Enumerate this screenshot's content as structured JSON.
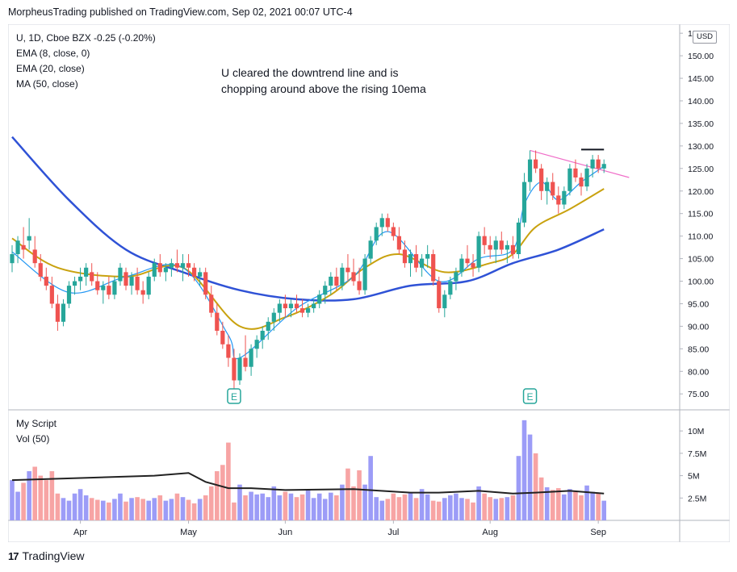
{
  "header": {
    "publish_line": "MorpheusTrading published on TradingView.com, Sep 02, 2021 00:07 UTC-4"
  },
  "legend": {
    "symbol_line": "U, 1D, Cboe BZX  -0.25 (-0.20%)",
    "ema8": "EMA (8, close, 0)",
    "ema20": "EMA (20, close)",
    "ma50": "MA (50, close)"
  },
  "annotation": "U cleared the downtrend line and is chopping around above the rising 10ema",
  "volume_legend": {
    "script": "My Script",
    "vol": "Vol (50)"
  },
  "price_axis": {
    "currency": "USD",
    "ticks": [
      "155.00",
      "150.00",
      "145.00",
      "140.00",
      "135.00",
      "130.00",
      "125.00",
      "120.00",
      "115.00",
      "110.00",
      "105.00",
      "100.00",
      "95.00",
      "90.00",
      "85.00",
      "80.00",
      "75.00"
    ]
  },
  "volume_axis": {
    "ticks": [
      "10M",
      "7.5M",
      "5M",
      "2.5M"
    ]
  },
  "time_axis": {
    "ticks": [
      "Apr",
      "May",
      "Jun",
      "Jul",
      "Aug",
      "Sep"
    ]
  },
  "earnings_markers": [
    "E",
    "E"
  ],
  "brand": "TradingView",
  "colors": {
    "up": "#26a69a",
    "down": "#ef5350",
    "ema8": "#2196f3",
    "ema20": "#c9a20f",
    "ma50": "#2f52d6",
    "vol_up": "#9c9cf7",
    "vol_down": "#f7a4a4",
    "vol_ma": "#222222",
    "trendline": "#f06cc8"
  },
  "chart_data": {
    "type": "candlestick",
    "symbol": "U",
    "interval": "1D",
    "ylim": [
      72,
      157
    ],
    "x_ticks": [
      "Apr",
      "May",
      "Jun",
      "Jul",
      "Aug",
      "Sep"
    ],
    "ohlc": [
      [
        104,
        108,
        102,
        106
      ],
      [
        106,
        110,
        104,
        109
      ],
      [
        108,
        112,
        105,
        107
      ],
      [
        109,
        114,
        107,
        110
      ],
      [
        107,
        110,
        103,
        104
      ],
      [
        104,
        106,
        100,
        101
      ],
      [
        101,
        103,
        98,
        99
      ],
      [
        99,
        101,
        94,
        95
      ],
      [
        95,
        97,
        89,
        91
      ],
      [
        91,
        96,
        90,
        95
      ],
      [
        95,
        100,
        94,
        99
      ],
      [
        99,
        101,
        97,
        100
      ],
      [
        100,
        103,
        98,
        101
      ],
      [
        101,
        104,
        99,
        103
      ],
      [
        102,
        104,
        99,
        100
      ],
      [
        100,
        102,
        97,
        98
      ],
      [
        98,
        100,
        95,
        99
      ],
      [
        99,
        101,
        96,
        97
      ],
      [
        97,
        101,
        96,
        100
      ],
      [
        100,
        104,
        99,
        103
      ],
      [
        102,
        103,
        98,
        99
      ],
      [
        99,
        102,
        97,
        101
      ],
      [
        101,
        103,
        97,
        98
      ],
      [
        98,
        100,
        95,
        97
      ],
      [
        97,
        102,
        96,
        101
      ],
      [
        101,
        105,
        100,
        104
      ],
      [
        104,
        106,
        101,
        102
      ],
      [
        102,
        104,
        100,
        103
      ],
      [
        103,
        105,
        101,
        104
      ],
      [
        104,
        107,
        102,
        103
      ],
      [
        103,
        106,
        100,
        104
      ],
      [
        104,
        106,
        101,
        103
      ],
      [
        103,
        104,
        100,
        101
      ],
      [
        101,
        103,
        99,
        102
      ],
      [
        102,
        103,
        96,
        97
      ],
      [
        97,
        99,
        92,
        93
      ],
      [
        93,
        95,
        88,
        89
      ],
      [
        89,
        91,
        85,
        86
      ],
      [
        86,
        88,
        81,
        83
      ],
      [
        83,
        85,
        76,
        78
      ],
      [
        78,
        84,
        77,
        83
      ],
      [
        83,
        88,
        80,
        81
      ],
      [
        81,
        86,
        79,
        85
      ],
      [
        85,
        88,
        83,
        87
      ],
      [
        87,
        90,
        85,
        89
      ],
      [
        89,
        92,
        87,
        91
      ],
      [
        91,
        94,
        89,
        93
      ],
      [
        93,
        96,
        91,
        95
      ],
      [
        95,
        97,
        92,
        94
      ],
      [
        94,
        96,
        92,
        95
      ],
      [
        95,
        97,
        93,
        94
      ],
      [
        94,
        96,
        92,
        93
      ],
      [
        93,
        95,
        92,
        94
      ],
      [
        94,
        96,
        93,
        95
      ],
      [
        95,
        98,
        94,
        97
      ],
      [
        97,
        100,
        95,
        99
      ],
      [
        99,
        102,
        97,
        101
      ],
      [
        101,
        103,
        98,
        99
      ],
      [
        99,
        104,
        98,
        103
      ],
      [
        103,
        106,
        100,
        102
      ],
      [
        102,
        105,
        99,
        100
      ],
      [
        100,
        103,
        97,
        98
      ],
      [
        98,
        106,
        97,
        105
      ],
      [
        105,
        110,
        104,
        109
      ],
      [
        109,
        113,
        108,
        112
      ],
      [
        112,
        115,
        110,
        114
      ],
      [
        114,
        115,
        111,
        112
      ],
      [
        112,
        113,
        109,
        110
      ],
      [
        110,
        112,
        106,
        107
      ],
      [
        107,
        109,
        103,
        104
      ],
      [
        104,
        107,
        101,
        106
      ],
      [
        106,
        108,
        102,
        103
      ],
      [
        103,
        106,
        101,
        105
      ],
      [
        105,
        108,
        103,
        106
      ],
      [
        106,
        107,
        99,
        100
      ],
      [
        100,
        101,
        93,
        94
      ],
      [
        94,
        98,
        92,
        97
      ],
      [
        97,
        101,
        96,
        100
      ],
      [
        100,
        103,
        98,
        102
      ],
      [
        102,
        106,
        101,
        105
      ],
      [
        105,
        108,
        103,
        104
      ],
      [
        104,
        106,
        101,
        103
      ],
      [
        103,
        111,
        102,
        110
      ],
      [
        110,
        112,
        106,
        108
      ],
      [
        108,
        110,
        105,
        107
      ],
      [
        107,
        110,
        104,
        109
      ],
      [
        109,
        111,
        106,
        107
      ],
      [
        107,
        109,
        104,
        108
      ],
      [
        108,
        110,
        105,
        106
      ],
      [
        106,
        114,
        105,
        113
      ],
      [
        113,
        124,
        112,
        122
      ],
      [
        122,
        129,
        120,
        127
      ],
      [
        127,
        129,
        124,
        125
      ],
      [
        125,
        126,
        118,
        120
      ],
      [
        120,
        123,
        117,
        122
      ],
      [
        122,
        124,
        118,
        119
      ],
      [
        119,
        121,
        115,
        117
      ],
      [
        117,
        121,
        116,
        120
      ],
      [
        120,
        126,
        119,
        125
      ],
      [
        125,
        127,
        122,
        123
      ],
      [
        123,
        124,
        119,
        121
      ],
      [
        121,
        126,
        120,
        125
      ],
      [
        125,
        128,
        123,
        127
      ],
      [
        127,
        128,
        124,
        125
      ],
      [
        125,
        127,
        124,
        126
      ]
    ],
    "ema8_points": [
      [
        0,
        106.5
      ],
      [
        10,
        97.5
      ],
      [
        20,
        101
      ],
      [
        30,
        103
      ],
      [
        38,
        88
      ],
      [
        40,
        83
      ],
      [
        50,
        94
      ],
      [
        60,
        101
      ],
      [
        66,
        111
      ],
      [
        75,
        100
      ],
      [
        82,
        105
      ],
      [
        88,
        107
      ],
      [
        90,
        117
      ],
      [
        93,
        122
      ],
      [
        96,
        118
      ],
      [
        100,
        122
      ],
      [
        104,
        125.5
      ]
    ],
    "ema20_points": [
      [
        0,
        109.5
      ],
      [
        8,
        103
      ],
      [
        20,
        101
      ],
      [
        30,
        103
      ],
      [
        40,
        90
      ],
      [
        48,
        92
      ],
      [
        56,
        97
      ],
      [
        62,
        103
      ],
      [
        68,
        106
      ],
      [
        76,
        102
      ],
      [
        84,
        104
      ],
      [
        88,
        106
      ],
      [
        92,
        112
      ],
      [
        98,
        116
      ],
      [
        104,
        120.5
      ]
    ],
    "ma50_points": [
      [
        0,
        132
      ],
      [
        10,
        118
      ],
      [
        20,
        107
      ],
      [
        30,
        102
      ],
      [
        40,
        98
      ],
      [
        50,
        96
      ],
      [
        60,
        96
      ],
      [
        70,
        99
      ],
      [
        80,
        100
      ],
      [
        88,
        104
      ],
      [
        96,
        107
      ],
      [
        104,
        111.5
      ]
    ],
    "trendline": [
      [
        91,
        129
      ],
      [
        107,
        123
      ]
    ],
    "resistance": [
      [
        100,
        129.2
      ],
      [
        104,
        129.2
      ]
    ],
    "earnings_bars": [
      39,
      91
    ],
    "volume_millions": [
      4.5,
      3.2,
      4.2,
      5.5,
      6,
      5,
      4.5,
      5.5,
      3,
      2.5,
      2.2,
      3,
      3.5,
      2.8,
      2.5,
      2.3,
      2.2,
      2,
      2.4,
      3,
      2.1,
      2.5,
      2.6,
      2.4,
      2.2,
      2.5,
      2.8,
      2.2,
      2.4,
      3,
      2.6,
      2.3,
      1.9,
      2.4,
      2.8,
      3.8,
      5.5,
      6.2,
      8.7,
      2,
      4,
      2.8,
      3.2,
      2.9,
      3,
      2.6,
      3.8,
      2.8,
      3.2,
      3,
      2.6,
      2.9,
      3.4,
      2.5,
      3,
      2.4,
      3.1,
      2.8,
      4,
      5.8,
      3.8,
      5.6,
      4,
      7.2,
      2.6,
      2.2,
      2.4,
      3,
      2.6,
      2.9,
      3.1,
      2.5,
      3.5,
      2.9,
      2.2,
      2.1,
      2.5,
      2.8,
      3,
      2.5,
      2.4,
      2,
      3.8,
      3,
      2.6,
      2.4,
      2.5,
      2.6,
      2.8,
      7.2,
      11.2,
      9.6,
      7.5,
      4.8,
      3.7,
      3.4,
      3.6,
      2.9,
      3.5,
      3.3,
      2.8,
      3.9,
      3.2,
      3.1,
      2.2
    ],
    "volume_ma_points": [
      [
        0,
        4.5
      ],
      [
        25,
        5
      ],
      [
        31,
        5.3
      ],
      [
        34,
        4.3
      ],
      [
        38,
        3.6
      ],
      [
        42,
        3.6
      ],
      [
        48,
        3.4
      ],
      [
        60,
        3.5
      ],
      [
        70,
        3.1
      ],
      [
        75,
        3.1
      ],
      [
        82,
        3.3
      ],
      [
        88,
        3
      ],
      [
        92,
        3.1
      ],
      [
        98,
        3.3
      ],
      [
        104,
        3
      ]
    ],
    "vol_ylim": [
      0,
      12
    ]
  }
}
